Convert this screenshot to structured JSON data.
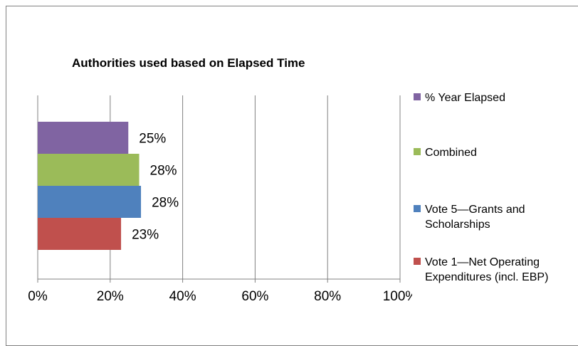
{
  "chart_data": {
    "type": "bar",
    "orientation": "horizontal",
    "title": "Authorities used based on Elapsed Time",
    "xlabel": "",
    "ylabel": "",
    "xlim": [
      0,
      100
    ],
    "x_ticks": [
      "0%",
      "20%",
      "40%",
      "60%",
      "80%",
      "100%"
    ],
    "grid": true,
    "legend_position": "right",
    "series": [
      {
        "name": "% Year Elapsed",
        "value": 25,
        "label": "25%",
        "color": "#8064A2"
      },
      {
        "name": "Combined",
        "value": 28,
        "label": "28%",
        "color": "#9BBB59"
      },
      {
        "name": "Vote 5—Grants and Scholarships",
        "value": 28.5,
        "label": "28%",
        "color": "#4F81BD"
      },
      {
        "name": "Vote 1—Net Operating Expenditures (incl. EBP)",
        "value": 23,
        "label": "23%",
        "color": "#C0504D"
      }
    ]
  }
}
